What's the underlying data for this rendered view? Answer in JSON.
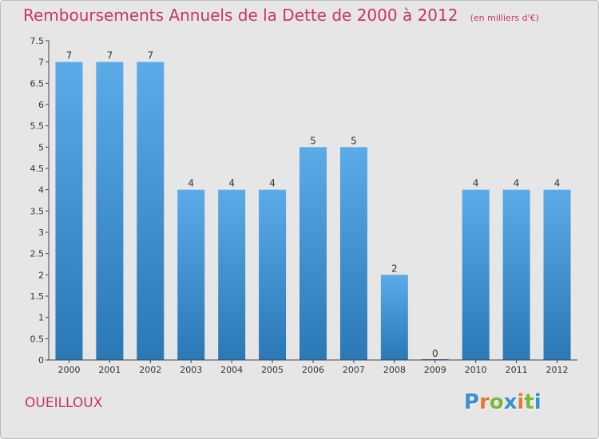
{
  "chart_data": {
    "type": "bar",
    "title": "Remboursements Annuels de la Dette de 2000 à 2012",
    "unit_label": "(en milliers d'€)",
    "categories": [
      "2000",
      "2001",
      "2002",
      "2003",
      "2004",
      "2005",
      "2006",
      "2007",
      "2008",
      "2009",
      "2010",
      "2011",
      "2012"
    ],
    "values": [
      7,
      7,
      7,
      4,
      4,
      4,
      5,
      5,
      2,
      0,
      4,
      4,
      4
    ],
    "data_labels": [
      "7",
      "7",
      "7",
      "4",
      "4",
      "4",
      "5",
      "5",
      "2",
      "0",
      "4",
      "4",
      "4"
    ],
    "y_ticks": [
      "0",
      "0.5",
      "1",
      "1.5",
      "2",
      "2.5",
      "3",
      "3.5",
      "4",
      "4.5",
      "5",
      "5.5",
      "6",
      "6.5",
      "7",
      "7.5"
    ],
    "ylim": [
      0,
      7.5
    ],
    "xlabel": "",
    "ylabel": "",
    "grid": false,
    "bar_color": "#5aa8e6",
    "bar_color_dark": "#2a7ab8"
  },
  "footer": {
    "commune": "OUEILLOUX",
    "brand": "Proxiti",
    "brand_colors": [
      "#3a8fd0",
      "#e8792a",
      "#7ab83a",
      "#3a8fd0",
      "#e8792a",
      "#7ab83a",
      "#3a8fd0"
    ]
  },
  "colors": {
    "title": "#cc3366",
    "background": "#e6e6e6",
    "axis": "#444444"
  }
}
